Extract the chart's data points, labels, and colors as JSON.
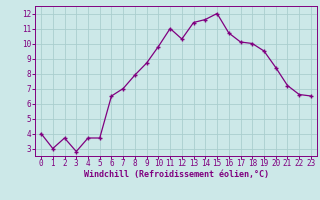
{
  "x": [
    0,
    1,
    2,
    3,
    4,
    5,
    6,
    7,
    8,
    9,
    10,
    11,
    12,
    13,
    14,
    15,
    16,
    17,
    18,
    19,
    20,
    21,
    22,
    23
  ],
  "y": [
    4.0,
    3.0,
    3.7,
    2.8,
    3.7,
    3.7,
    6.5,
    7.0,
    7.9,
    8.7,
    9.8,
    11.0,
    10.3,
    11.4,
    11.6,
    12.0,
    10.7,
    10.1,
    10.0,
    9.5,
    8.4,
    7.2,
    6.6,
    6.5
  ],
  "line_color": "#800080",
  "marker": "+",
  "bg_color": "#cce8e8",
  "grid_color": "#aacece",
  "xlabel": "Windchill (Refroidissement éolien,°C)",
  "xlabel_color": "#800080",
  "xlabel_fontsize": 6.0,
  "tick_color": "#800080",
  "tick_fontsize": 5.5,
  "ylim": [
    2.5,
    12.5
  ],
  "yticks": [
    3,
    4,
    5,
    6,
    7,
    8,
    9,
    10,
    11,
    12
  ],
  "xticks": [
    0,
    1,
    2,
    3,
    4,
    5,
    6,
    7,
    8,
    9,
    10,
    11,
    12,
    13,
    14,
    15,
    16,
    17,
    18,
    19,
    20,
    21,
    22,
    23
  ],
  "linewidth": 0.9,
  "markersize": 3.5,
  "markeredgewidth": 1.0
}
